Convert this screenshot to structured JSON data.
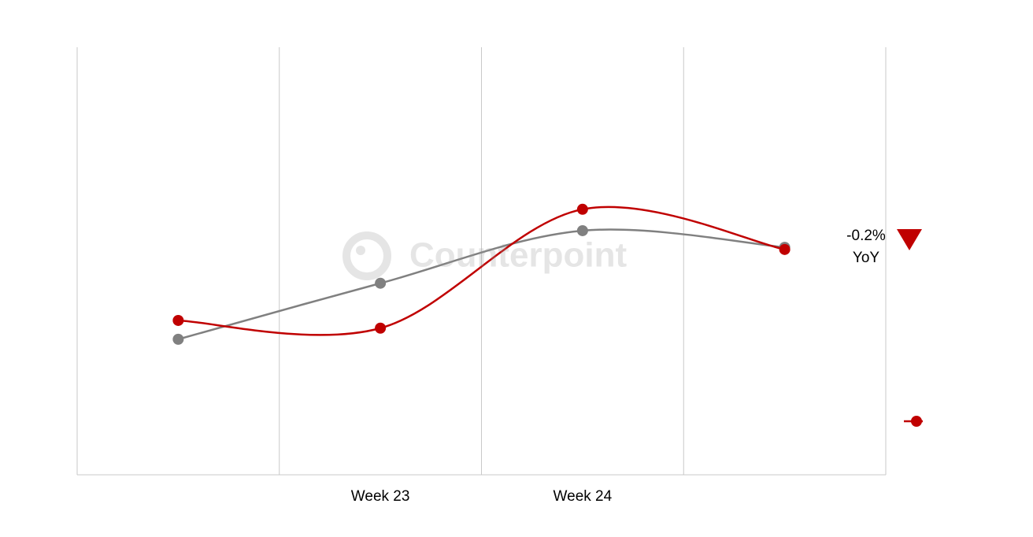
{
  "chart_data": {
    "type": "line",
    "categories": [
      null,
      "Week 23",
      "Week 24",
      null
    ],
    "series": [
      {
        "color": "#808080",
        "values": [
          31.7,
          44.8,
          57.1,
          53.2
        ]
      },
      {
        "color": "#c00000",
        "values": [
          36.1,
          34.3,
          62.1,
          52.7
        ]
      }
    ],
    "ylim": [
      0,
      100
    ],
    "grid": true,
    "annotations": [
      "-0.2%",
      "YoY"
    ],
    "watermark": "Counterpoint"
  }
}
